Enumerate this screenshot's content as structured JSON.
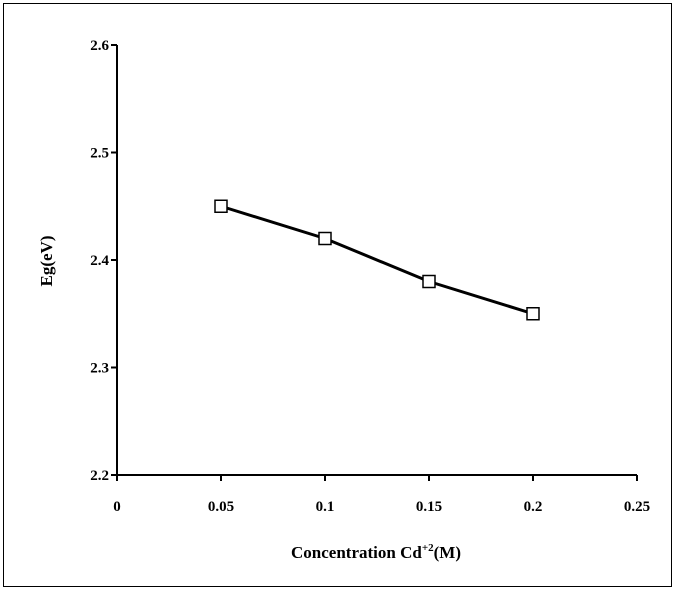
{
  "chart_data": {
    "type": "line",
    "title": "",
    "xlabel": "Concentration Cd",
    "xlabel_sup": "+2",
    "xlabel_suffix": "(M)",
    "ylabel": "Eg(eV)",
    "xlim": [
      0,
      0.25
    ],
    "ylim": [
      2.2,
      2.6
    ],
    "x_ticks": [
      0,
      0.05,
      0.1,
      0.15,
      0.2,
      0.25
    ],
    "x_tick_labels": [
      "0",
      "0.05",
      "0.1",
      "0.15",
      "0.2",
      "0.25"
    ],
    "y_ticks": [
      2.2,
      2.3,
      2.4,
      2.5,
      2.6
    ],
    "y_tick_labels": [
      "2.2",
      "2.3",
      "2.4",
      "2.5",
      "2.6"
    ],
    "grid": false,
    "legend": "none",
    "marker": "open-square",
    "line_color": "#000000",
    "series": [
      {
        "x": [
          0.05,
          0.1,
          0.15,
          0.2
        ],
        "y": [
          2.45,
          2.42,
          2.38,
          2.35
        ]
      }
    ]
  }
}
